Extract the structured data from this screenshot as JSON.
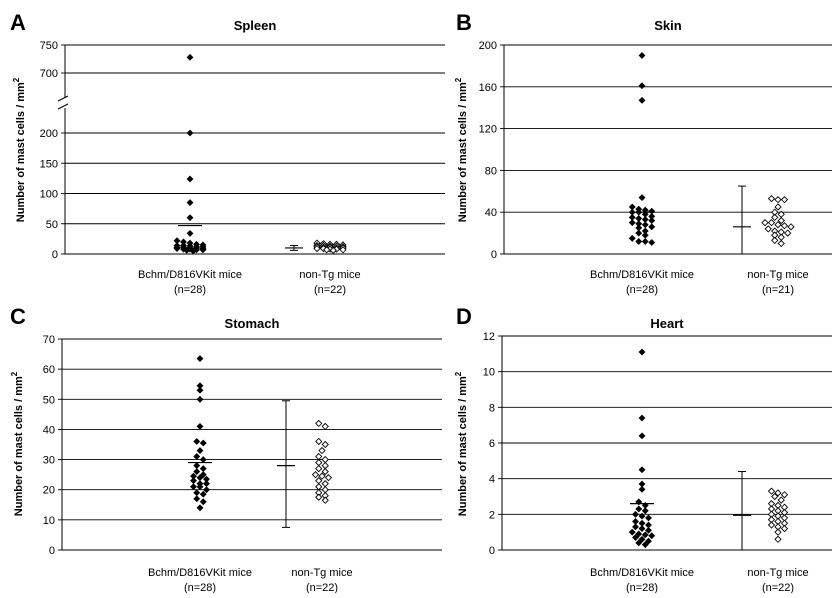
{
  "chart_data": [
    {
      "type": "scatter",
      "panel": "A",
      "title": "Spleen",
      "ylabel": "Number of mast cells / mm",
      "ylabel_sup": "2",
      "y_axis_break": true,
      "ylim_lower": [
        0,
        200
      ],
      "ylim_upper": [
        700,
        750
      ],
      "yticks": [
        "0",
        "50",
        "100",
        "150",
        "200",
        "700",
        "750"
      ],
      "categories": [
        {
          "name": "Bchm/D816VKit mice",
          "n_label": "(n=28)"
        },
        {
          "name": "non-Tg mice",
          "n_label": "(n=22)"
        }
      ],
      "series": [
        {
          "category": "Bchm/D816VKit mice",
          "marker": "filled-diamond",
          "mean": 47,
          "values": [
            728,
            200,
            124,
            85,
            60,
            34,
            22,
            20,
            18,
            16,
            15,
            14,
            14,
            13,
            12,
            12,
            11,
            11,
            10,
            10,
            9,
            9,
            8,
            8,
            7,
            7,
            6,
            5
          ]
        },
        {
          "category": "non-Tg mice",
          "marker": "open-diamond",
          "mean": 10,
          "error_range": [
            6,
            14
          ],
          "values": [
            18,
            17,
            16,
            16,
            15,
            14,
            14,
            13,
            13,
            12,
            12,
            11,
            11,
            10,
            10,
            9,
            9,
            8,
            8,
            7,
            7,
            6
          ]
        }
      ]
    },
    {
      "type": "scatter",
      "panel": "B",
      "title": "Skin",
      "ylabel": "Number of mast cells / mm",
      "ylabel_sup": "2",
      "ylim": [
        0,
        200
      ],
      "yticks": [
        "0",
        "40",
        "80",
        "120",
        "160",
        "200"
      ],
      "categories": [
        {
          "name": "Bchm/D816VKit mice",
          "n_label": "(n=28)"
        },
        {
          "name": "non-Tg mice",
          "n_label": "(n=21)"
        }
      ],
      "series": [
        {
          "category": "Bchm/D816VKit mice",
          "marker": "filled-diamond",
          "mean": 40,
          "values": [
            190,
            161,
            147,
            54,
            45,
            43,
            42,
            41,
            40,
            40,
            38,
            36,
            35,
            34,
            33,
            32,
            30,
            29,
            28,
            26,
            25,
            22,
            20,
            18,
            15,
            12,
            12,
            11
          ]
        },
        {
          "category": "non-Tg mice",
          "marker": "open-diamond",
          "mean": 26,
          "error_range": [
            0,
            65
          ],
          "values": [
            53,
            52,
            52,
            45,
            40,
            38,
            35,
            32,
            30,
            30,
            28,
            27,
            26,
            24,
            22,
            21,
            20,
            18,
            16,
            13,
            10
          ]
        }
      ]
    },
    {
      "type": "scatter",
      "panel": "C",
      "title": "Stomach",
      "ylabel": "Number of mast cells / mm",
      "ylabel_sup": "2",
      "ylim": [
        0,
        70
      ],
      "yticks": [
        "0",
        "10",
        "20",
        "30",
        "40",
        "50",
        "60",
        "70"
      ],
      "categories": [
        {
          "name": "Bchm/D816VKit mice",
          "n_label": "(n=28)"
        },
        {
          "name": "non-Tg mice",
          "n_label": "(n=22)"
        }
      ],
      "series": [
        {
          "category": "Bchm/D816VKit mice",
          "marker": "filled-diamond",
          "mean": 29,
          "values": [
            63.5,
            54.5,
            53,
            50,
            41,
            36,
            35.5,
            33,
            31,
            30,
            28,
            27,
            26,
            25,
            24.5,
            24,
            23.5,
            23,
            22,
            22,
            21,
            21,
            20,
            19,
            18.5,
            17,
            16,
            14
          ]
        },
        {
          "category": "non-Tg mice",
          "marker": "open-diamond",
          "mean": 28,
          "error_range": [
            7.5,
            49.5
          ],
          "values": [
            42,
            41,
            36,
            35,
            33,
            31,
            30,
            29,
            28,
            27,
            26,
            25,
            24.5,
            24,
            23,
            22,
            21,
            20,
            19,
            18,
            17.5,
            16.5
          ]
        }
      ]
    },
    {
      "type": "scatter",
      "panel": "D",
      "title": "Heart",
      "ylabel": "Number of mast cells / mm",
      "ylabel_sup": "2",
      "ylim": [
        0,
        12
      ],
      "yticks": [
        "0",
        "2",
        "4",
        "6",
        "8",
        "10",
        "12"
      ],
      "categories": [
        {
          "name": "Bchm/D816VKit mice",
          "n_label": "(n=28)"
        },
        {
          "name": "non-Tg mice",
          "n_label": "(n=22)"
        }
      ],
      "series": [
        {
          "category": "Bchm/D816VKit mice",
          "marker": "filled-diamond",
          "mean": 2.6,
          "values": [
            11.1,
            7.4,
            6.4,
            4.5,
            3.7,
            3.4,
            2.7,
            2.5,
            2.3,
            2.2,
            2.0,
            1.9,
            1.8,
            1.6,
            1.5,
            1.4,
            1.3,
            1.2,
            1.1,
            1.0,
            0.9,
            0.85,
            0.8,
            0.7,
            0.6,
            0.5,
            0.4,
            0.3
          ]
        },
        {
          "category": "non-Tg mice",
          "marker": "open-diamond",
          "mean": 1.95,
          "error_range": [
            0,
            4.4
          ],
          "values": [
            3.3,
            3.2,
            3.1,
            3.0,
            2.8,
            2.6,
            2.5,
            2.4,
            2.3,
            2.2,
            2.1,
            2.0,
            1.9,
            1.8,
            1.7,
            1.6,
            1.5,
            1.4,
            1.3,
            1.2,
            1.0,
            0.6
          ]
        }
      ]
    }
  ]
}
